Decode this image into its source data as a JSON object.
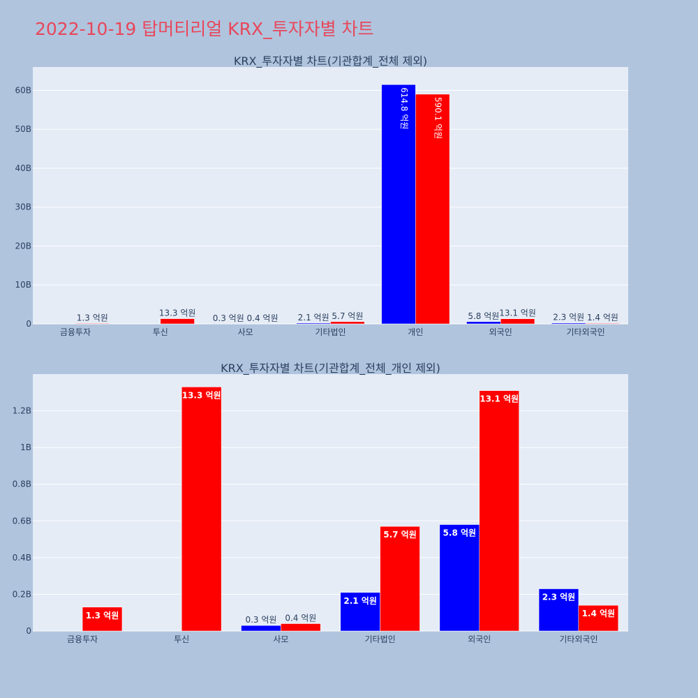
{
  "title": "2022-10-19 탑머티리얼 KRX_투자자별 차트",
  "colors": {
    "page_background": "#b0c4de",
    "plot_background": "#e5ecf6",
    "title": "#e8475a",
    "series_buy": "#0000ff",
    "series_sell": "#ff0000"
  },
  "chart_data": [
    {
      "type": "bar",
      "title": "KRX_투자자별 차트(기관합계_전체 제외)",
      "categories": [
        "금융투자",
        "투신",
        "사모",
        "기타법인",
        "개인",
        "외국인",
        "기타외국인"
      ],
      "series": [
        {
          "color": "#0000ff",
          "values": [
            0,
            0,
            30000000,
            210000000,
            61480000000,
            580000000,
            230000000
          ],
          "labels": [
            "",
            "",
            "0.3 억원",
            "2.1 억원",
            "614.8 억원",
            "5.8 억원",
            "2.3 억원"
          ]
        },
        {
          "color": "#ff0000",
          "values": [
            130000000,
            1330000000,
            40000000,
            570000000,
            59010000000,
            1310000000,
            140000000
          ],
          "labels": [
            "1.3 억원",
            "13.3 억원",
            "0.4 억원",
            "5.7 억원",
            "590.1 억원",
            "13.1 억원",
            "1.4 억원"
          ]
        }
      ],
      "yticks": [
        0,
        10000000000,
        20000000000,
        30000000000,
        40000000000,
        50000000000,
        60000000000
      ],
      "ytick_labels": [
        "0",
        "10B",
        "20B",
        "30B",
        "40B",
        "50B",
        "60B"
      ],
      "ylim": [
        0,
        66000000000
      ],
      "grid": true,
      "legend": "none"
    },
    {
      "type": "bar",
      "title": "KRX_투자자별 차트(기관합계_전체_개인 제외)",
      "categories": [
        "금융투자",
        "투신",
        "사모",
        "기타법인",
        "외국인",
        "기타외국인"
      ],
      "series": [
        {
          "color": "#0000ff",
          "values": [
            0,
            0,
            30000000,
            210000000,
            580000000,
            230000000
          ],
          "labels": [
            "",
            "",
            "0.3 억원",
            "2.1 억원",
            "5.8 억원",
            "2.3 억원"
          ]
        },
        {
          "color": "#ff0000",
          "values": [
            130000000,
            1330000000,
            40000000,
            570000000,
            1310000000,
            140000000
          ],
          "labels": [
            "1.3 억원",
            "13.3 억원",
            "0.4 억원",
            "5.7 억원",
            "13.1 억원",
            "1.4 억원"
          ]
        }
      ],
      "yticks": [
        0,
        200000000,
        400000000,
        600000000,
        800000000,
        1000000000,
        1200000000
      ],
      "ytick_labels": [
        "0",
        "0.2B",
        "0.4B",
        "0.6B",
        "0.8B",
        "1B",
        "1.2B"
      ],
      "ylim": [
        0,
        1400000000
      ],
      "grid": true,
      "legend": "none"
    }
  ]
}
